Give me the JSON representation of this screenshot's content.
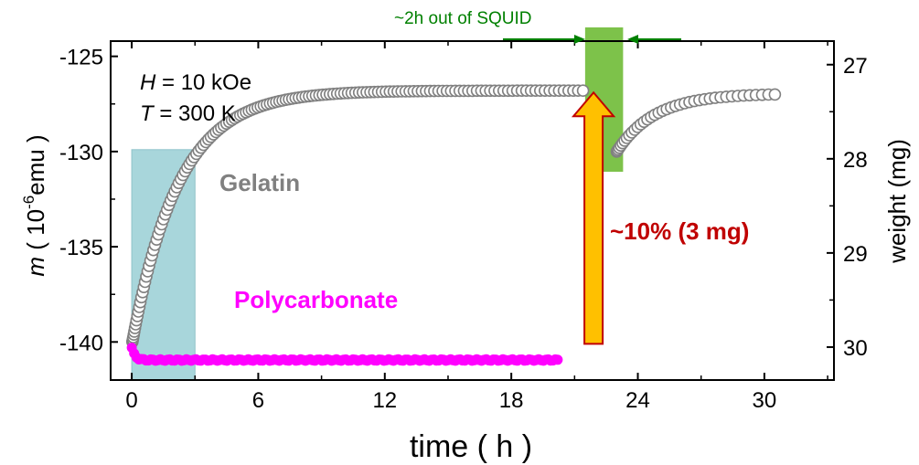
{
  "chart_data": {
    "type": "scatter",
    "xlabel": "time ( h )",
    "ylabel": {
      "symbol": "m",
      "prefix": " ( 10",
      "exponent": "-6",
      "unit": "emu )"
    },
    "y2label": "weight (mg)",
    "xlim": [
      -1,
      33.3
    ],
    "ylim": [
      -142.0,
      -124.2
    ],
    "y2lim": [
      30.35,
      26.75
    ],
    "xticks": [
      0,
      6,
      12,
      18,
      24,
      30
    ],
    "xtick_labels": [
      "0",
      "6",
      "12",
      "18",
      "24",
      "30"
    ],
    "yticks": [
      -125,
      -130,
      -135,
      -140
    ],
    "ytick_labels": [
      "-125",
      "-130",
      "-135",
      "-140"
    ],
    "y2ticks": [
      27,
      28,
      29,
      30
    ],
    "y2tick_labels": [
      "27",
      "28",
      "29",
      "30"
    ],
    "conditions": {
      "h_symbol": "H",
      "h_value": " = 10 kOe",
      "t_symbol": "T",
      "t_value": " = 300 K"
    },
    "series": [
      {
        "name": "Gelatin",
        "color": "#808080",
        "marker": "open-circle",
        "segments": [
          {
            "t_start": 0.03,
            "t_end": 21.4,
            "m0": -140.0,
            "m_end": -126.8,
            "tau": 2.2,
            "points": 150
          },
          {
            "t_start": 23.0,
            "t_end": 30.5,
            "m0": -130.0,
            "m_end": -127.0,
            "tau": 1.8,
            "points": 40
          }
        ]
      },
      {
        "name": "Polycarbonate",
        "color": "#ff00ff",
        "marker": "filled-circle",
        "segments": [
          {
            "t_start": 0.0,
            "t_end": 20.2,
            "m0": -140.3,
            "m_end": -140.95,
            "tau": 0.15,
            "points": 180
          }
        ]
      }
    ],
    "annotations": {
      "out_of_squid_label": "~2h out of SQUID",
      "out_of_squid_region": [
        21.5,
        23.3
      ],
      "out_of_squid_color": "#7dc24a",
      "initial_region": [
        0.0,
        3.0
      ],
      "initial_region_top_m": -129.9,
      "initial_region_color": "#a8d6db",
      "weight_loss_label": "~10% (3 mg)",
      "weight_loss_color": "#c00000",
      "arrow_fill": "#ffc000",
      "arrow_stroke": "#c00000",
      "arrow_x": 21.9,
      "arrow_from_m": -140.1,
      "arrow_to_m": -126.9
    }
  }
}
